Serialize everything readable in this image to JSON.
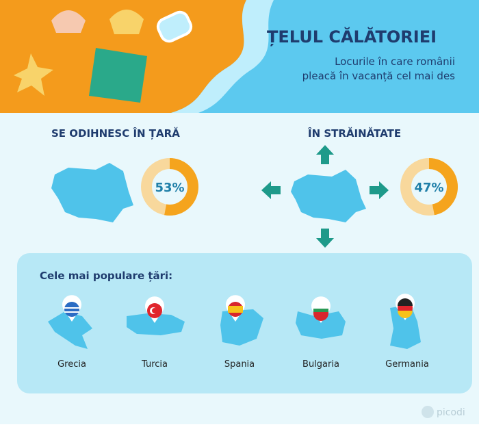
{
  "header": {
    "title": "ȚELUL CĂLĂTORIEI",
    "subtitle_lines": [
      "Locurile în care românii",
      "pleacă în vacanță cel mai des"
    ]
  },
  "sections": [
    {
      "title": "SE ODIHNESC ÎN ȚARĂ",
      "percent": 53,
      "percent_label": "53%"
    },
    {
      "title": "ÎN STRĂINĂTATE",
      "percent": 47,
      "percent_label": "47%"
    }
  ],
  "popular": {
    "title": "Cele mai populare țări:",
    "countries": [
      "Grecia",
      "Turcia",
      "Spania",
      "Bulgaria",
      "Germania"
    ]
  },
  "brand": "picodi"
}
